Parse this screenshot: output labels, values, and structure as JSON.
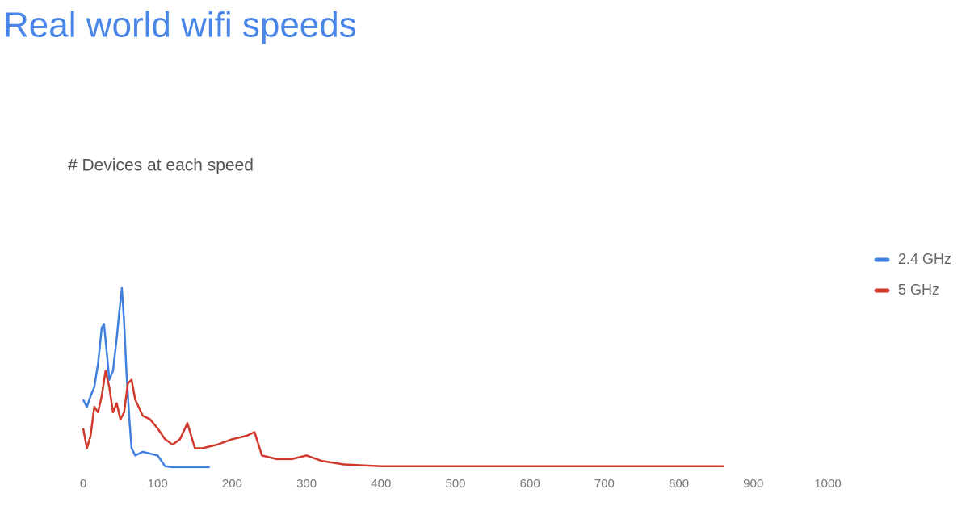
{
  "chart_data": {
    "type": "line",
    "title": "Real world wifi speeds",
    "subtitle": "# Devices at each speed",
    "xlim": [
      0,
      1000
    ],
    "xticks": [
      0,
      100,
      200,
      300,
      400,
      500,
      600,
      700,
      800,
      900,
      1000
    ],
    "ylim": [
      0,
      100
    ],
    "legend": "right",
    "series": [
      {
        "name": "2.4 GHz",
        "color": "#3f7fe0",
        "x": [
          0,
          5,
          10,
          15,
          20,
          25,
          28,
          32,
          35,
          40,
          45,
          48,
          52,
          55,
          58,
          62,
          65,
          70,
          80,
          90,
          100,
          105,
          110,
          120,
          140,
          170
        ],
        "values": [
          38,
          34,
          40,
          45,
          58,
          78,
          80,
          63,
          49,
          54,
          72,
          85,
          100,
          81,
          54,
          27,
          11,
          7,
          9,
          8,
          7,
          4,
          1,
          0.5,
          0.5,
          0.5
        ]
      },
      {
        "name": "5 GHz",
        "color": "#d0392b",
        "x": [
          0,
          5,
          10,
          15,
          20,
          25,
          30,
          35,
          40,
          45,
          50,
          55,
          60,
          65,
          70,
          80,
          90,
          100,
          110,
          120,
          130,
          140,
          150,
          160,
          180,
          200,
          220,
          230,
          240,
          260,
          280,
          300,
          320,
          350,
          400,
          500,
          600,
          700,
          860
        ],
        "values": [
          22,
          11,
          18,
          34,
          31,
          40,
          54,
          45,
          31,
          36,
          27,
          31,
          47,
          49,
          38,
          29,
          27,
          22,
          16,
          13,
          16,
          25,
          11,
          11,
          13,
          16,
          18,
          20,
          7,
          5,
          5,
          7,
          4,
          2,
          1,
          1,
          1,
          1,
          1
        ]
      }
    ]
  }
}
